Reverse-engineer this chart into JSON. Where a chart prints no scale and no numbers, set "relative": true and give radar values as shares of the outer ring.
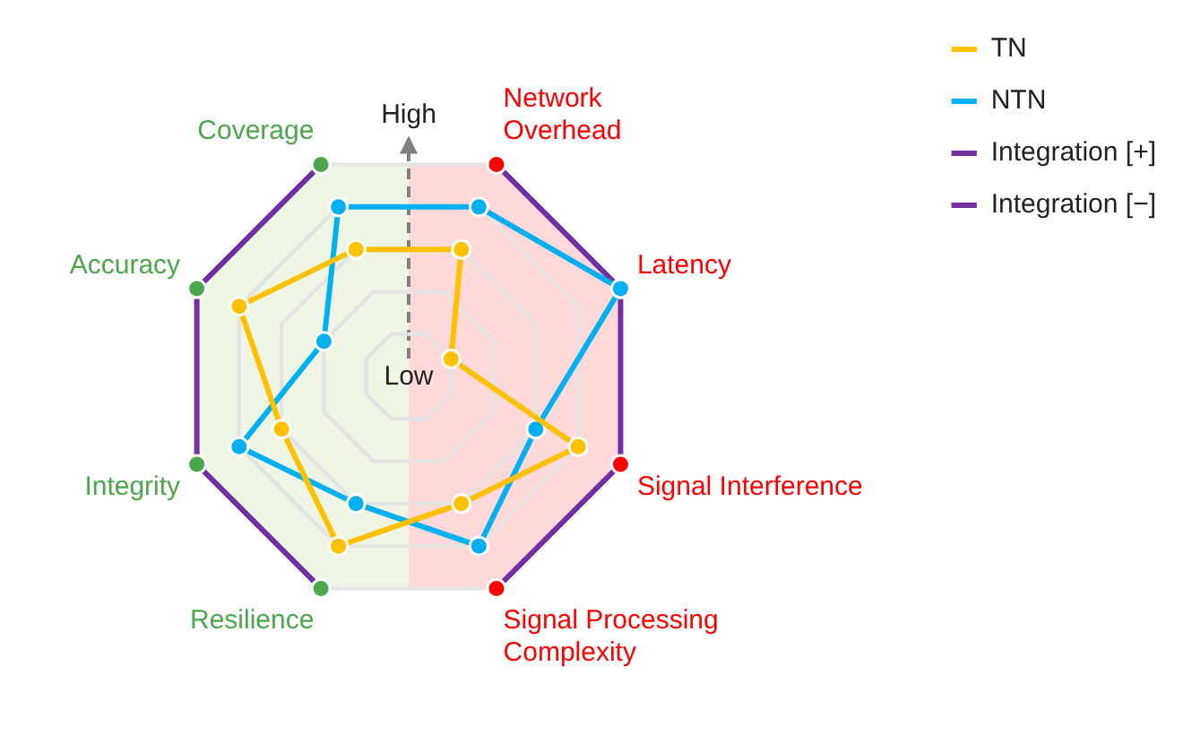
{
  "chart_data": {
    "type": "radar",
    "relative": true,
    "grid": true,
    "legend": "top right",
    "annotations": [
      "High",
      "Low"
    ],
    "categories": [
      "Network Overhead",
      "Latency",
      "Signal Interference",
      "Signal Processing Complexity",
      "Resilience",
      "Integrity",
      "Accuracy",
      "Coverage"
    ],
    "series": [
      {
        "name": "TN",
        "color": "#ffc000",
        "marker": "circle",
        "values": [
          0.6,
          0.2,
          0.8,
          0.6,
          0.8,
          0.6,
          0.8,
          0.6
        ]
      },
      {
        "name": "NTN",
        "color": "#00b0f0",
        "marker": "circle",
        "values": [
          0.8,
          1,
          0.6,
          0.8,
          0.6,
          0.8,
          0.4,
          0.8
        ]
      },
      {
        "name": "Integration [+]",
        "color": "#7030a0",
        "colors": [
          null,
          null,
          null,
          null,
          "#4ca64c",
          "#4ca64c",
          "#4ca64c",
          "#4ca64c"
        ],
        "marker": "circle",
        "values": [
          null,
          null,
          null,
          null,
          1,
          1,
          1,
          1
        ]
      },
      {
        "name": "Integration [−]",
        "color": "#7030a0",
        "colors": [
          "#ff0000",
          "#ff0000",
          "#ff0000",
          "#ff0000",
          null,
          null,
          null,
          null
        ],
        "marker": "circle",
        "values": [
          1,
          1,
          1,
          1,
          null,
          null,
          null,
          null
        ]
      }
    ]
  }
}
